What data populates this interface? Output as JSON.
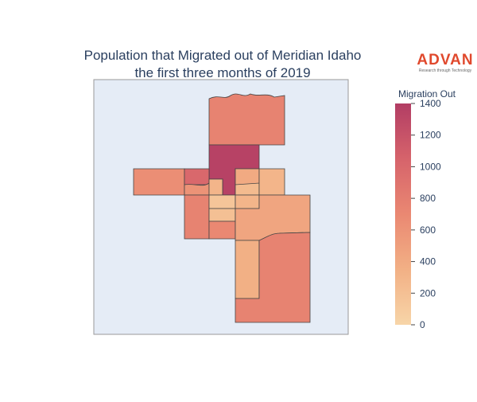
{
  "chart_data": {
    "type": "choropleth",
    "title": [
      "Population that Migrated out of Meridian Idaho",
      "the first three months of 2019"
    ],
    "colorbar_title": "Migration Out",
    "values": [
      750,
      1350,
      650,
      1000,
      600,
      300,
      400,
      250,
      300,
      750,
      150,
      200,
      700,
      300,
      450,
      350,
      750
    ],
    "zlim": [
      0,
      1400
    ],
    "zticks": [
      0,
      200,
      400,
      600,
      800,
      1000,
      1200,
      1400
    ],
    "colorscale": [
      "#f7d5a8",
      "#f2b085",
      "#ea8872",
      "#d6636b",
      "#b23d64"
    ],
    "map_background": "#e5ecf6"
  },
  "logo": {
    "name": "ADVAN",
    "tagline": "Research through Technology"
  }
}
